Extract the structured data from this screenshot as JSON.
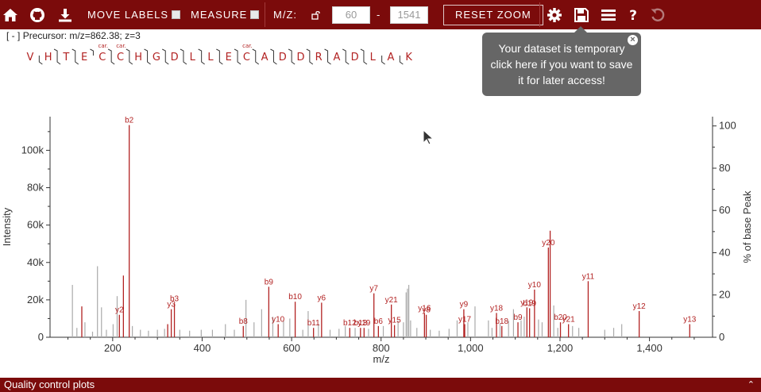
{
  "toolbar": {
    "move_labels": "MOVE LABELS",
    "measure": "MEASURE",
    "mz_label": "M/Z:",
    "mz_min": "60",
    "mz_dash": "-",
    "mz_max": "1541",
    "reset_zoom": "RESET ZOOM",
    "icons": [
      "home-icon",
      "github-icon",
      "download-icon",
      "lock-icon",
      "gear-icon",
      "save-icon",
      "menu-icon",
      "help-icon",
      "undo-icon"
    ],
    "color": "#7b0b0b"
  },
  "precursor": {
    "toggle": "[ - ]",
    "text": "Precursor: m/z=862.38; z=3"
  },
  "sequence": {
    "residues": [
      "V",
      "H",
      "T",
      "E",
      "C",
      "C",
      "H",
      "G",
      "D",
      "L",
      "L",
      "E",
      "C",
      "A",
      "D",
      "D",
      "R",
      "A",
      "D",
      "L",
      "A",
      "K"
    ],
    "mod_positions": [
      4,
      5,
      12
    ],
    "mod_label": "car.",
    "b_breaks": [
      2,
      3,
      4,
      5,
      6,
      7,
      8,
      9,
      10,
      11,
      12,
      13,
      14,
      15,
      16,
      17,
      18,
      19
    ],
    "y_breaks": [
      1,
      2,
      3,
      5,
      6,
      7,
      8,
      9,
      10,
      11,
      12,
      13,
      14,
      15,
      16,
      17,
      18,
      19,
      20,
      21
    ]
  },
  "tooltip": {
    "line1": "Your dataset is temporary",
    "line2": "click here if you want to save",
    "line3": "it for later access!",
    "close": "×"
  },
  "footer": {
    "label": "Quality control plots",
    "caret": "⌃"
  },
  "chart_data": {
    "type": "bar",
    "xlabel": "m/z",
    "ylabel": "Intensity",
    "y2label": "% of base Peak",
    "xlim": [
      60,
      1541
    ],
    "ylim": [
      0,
      118000
    ],
    "y2lim": [
      0,
      104.4
    ],
    "xticks": [
      200,
      400,
      600,
      800,
      1000,
      1200,
      1400
    ],
    "xtick_labels": [
      "200",
      "400",
      "600",
      "800",
      "1,000",
      "1,200",
      "1,400"
    ],
    "yticks": [
      0,
      20000,
      40000,
      60000,
      80000,
      100000
    ],
    "ytick_labels": [
      "0",
      "20k",
      "40k",
      "60k",
      "80k",
      "100k"
    ],
    "y2ticks": [
      0,
      20,
      40,
      60,
      80,
      100
    ],
    "y2tick_labels": [
      "0",
      "20",
      "40",
      "60",
      "80",
      "100"
    ],
    "colors": {
      "annotated": "#b22222",
      "unannotated": "#aaaaaa",
      "axis": "#333333"
    },
    "annotated_peaks": [
      {
        "mz": 237,
        "intensity": 113500,
        "label": "b2"
      },
      {
        "mz": 215,
        "intensity": 12000,
        "label": "y2"
      },
      {
        "mz": 224,
        "intensity": 33000,
        "label": ""
      },
      {
        "mz": 131,
        "intensity": 16500,
        "label": ""
      },
      {
        "mz": 323,
        "intensity": 7000,
        "label": ""
      },
      {
        "mz": 338,
        "intensity": 18000,
        "label": "b3"
      },
      {
        "mz": 331,
        "intensity": 15000,
        "label": "y3"
      },
      {
        "mz": 492,
        "intensity": 6000,
        "label": "b8"
      },
      {
        "mz": 549,
        "intensity": 27000,
        "label": "b9"
      },
      {
        "mz": 570,
        "intensity": 7000,
        "label": "y10"
      },
      {
        "mz": 608,
        "intensity": 19000,
        "label": "b10"
      },
      {
        "mz": 649,
        "intensity": 5000,
        "label": "b11"
      },
      {
        "mz": 667,
        "intensity": 18500,
        "label": "y6"
      },
      {
        "mz": 730,
        "intensity": 5000,
        "label": "b12"
      },
      {
        "mz": 754,
        "intensity": 5000,
        "label": "b13"
      },
      {
        "mz": 762,
        "intensity": 5000,
        "label": "y19"
      },
      {
        "mz": 794,
        "intensity": 6000,
        "label": "b6"
      },
      {
        "mz": 784,
        "intensity": 23500,
        "label": "y7"
      },
      {
        "mz": 823,
        "intensity": 17500,
        "label": "y21"
      },
      {
        "mz": 830,
        "intensity": 6500,
        "label": "y15"
      },
      {
        "mz": 897,
        "intensity": 13000,
        "label": "y16"
      },
      {
        "mz": 901,
        "intensity": 12000,
        "label": "y8"
      },
      {
        "mz": 985,
        "intensity": 15000,
        "label": "y9"
      },
      {
        "mz": 987,
        "intensity": 7000,
        "label": "y17"
      },
      {
        "mz": 1058,
        "intensity": 13000,
        "label": "y18"
      },
      {
        "mz": 1070,
        "intensity": 6000,
        "label": "b18"
      },
      {
        "mz": 1106,
        "intensity": 8000,
        "label": "b9"
      },
      {
        "mz": 1126,
        "intensity": 16000,
        "label": "y19"
      },
      {
        "mz": 1132,
        "intensity": 15500,
        "label": "b19"
      },
      {
        "mz": 1143,
        "intensity": 25500,
        "label": "y10"
      },
      {
        "mz": 1174,
        "intensity": 48000,
        "label": "y20"
      },
      {
        "mz": 1178,
        "intensity": 57000,
        "label": ""
      },
      {
        "mz": 1201,
        "intensity": 8000,
        "label": "b20"
      },
      {
        "mz": 1219,
        "intensity": 7000,
        "label": "y21"
      },
      {
        "mz": 1263,
        "intensity": 30000,
        "label": "y11"
      },
      {
        "mz": 1377,
        "intensity": 14000,
        "label": "y12"
      },
      {
        "mz": 1490,
        "intensity": 7000,
        "label": "y13"
      }
    ],
    "unannotated_peaks": [
      {
        "mz": 110,
        "intensity": 28000
      },
      {
        "mz": 120,
        "intensity": 5000
      },
      {
        "mz": 138,
        "intensity": 8000
      },
      {
        "mz": 155,
        "intensity": 3000
      },
      {
        "mz": 166,
        "intensity": 38000
      },
      {
        "mz": 175,
        "intensity": 16000
      },
      {
        "mz": 186,
        "intensity": 4000
      },
      {
        "mz": 201,
        "intensity": 7000
      },
      {
        "mz": 210,
        "intensity": 22000
      },
      {
        "mz": 244,
        "intensity": 6000
      },
      {
        "mz": 262,
        "intensity": 4000
      },
      {
        "mz": 280,
        "intensity": 3500
      },
      {
        "mz": 300,
        "intensity": 4000
      },
      {
        "mz": 316,
        "intensity": 4500
      },
      {
        "mz": 350,
        "intensity": 4000
      },
      {
        "mz": 372,
        "intensity": 3500
      },
      {
        "mz": 398,
        "intensity": 4000
      },
      {
        "mz": 423,
        "intensity": 4000
      },
      {
        "mz": 452,
        "intensity": 7000
      },
      {
        "mz": 472,
        "intensity": 4000
      },
      {
        "mz": 498,
        "intensity": 20000
      },
      {
        "mz": 516,
        "intensity": 8000
      },
      {
        "mz": 533,
        "intensity": 15000
      },
      {
        "mz": 558,
        "intensity": 11000
      },
      {
        "mz": 582,
        "intensity": 9000
      },
      {
        "mz": 596,
        "intensity": 10000
      },
      {
        "mz": 625,
        "intensity": 4000
      },
      {
        "mz": 637,
        "intensity": 14000
      },
      {
        "mz": 660,
        "intensity": 7000
      },
      {
        "mz": 686,
        "intensity": 4000
      },
      {
        "mz": 706,
        "intensity": 4500
      },
      {
        "mz": 720,
        "intensity": 6000
      },
      {
        "mz": 742,
        "intensity": 5000
      },
      {
        "mz": 772,
        "intensity": 4500
      },
      {
        "mz": 805,
        "intensity": 6000
      },
      {
        "mz": 838,
        "intensity": 9000
      },
      {
        "mz": 850,
        "intensity": 8000
      },
      {
        "mz": 856,
        "intensity": 24000
      },
      {
        "mz": 859,
        "intensity": 26000
      },
      {
        "mz": 862,
        "intensity": 28000
      },
      {
        "mz": 866,
        "intensity": 9000
      },
      {
        "mz": 880,
        "intensity": 5000
      },
      {
        "mz": 910,
        "intensity": 4000
      },
      {
        "mz": 930,
        "intensity": 3500
      },
      {
        "mz": 952,
        "intensity": 4500
      },
      {
        "mz": 970,
        "intensity": 9000
      },
      {
        "mz": 994,
        "intensity": 8000
      },
      {
        "mz": 1010,
        "intensity": 16500
      },
      {
        "mz": 1040,
        "intensity": 9000
      },
      {
        "mz": 1048,
        "intensity": 5000
      },
      {
        "mz": 1066,
        "intensity": 7500
      },
      {
        "mz": 1085,
        "intensity": 9000
      },
      {
        "mz": 1096,
        "intensity": 15000
      },
      {
        "mz": 1113,
        "intensity": 9000
      },
      {
        "mz": 1120,
        "intensity": 11000
      },
      {
        "mz": 1152,
        "intensity": 9500
      },
      {
        "mz": 1160,
        "intensity": 8000
      },
      {
        "mz": 1186,
        "intensity": 17000
      },
      {
        "mz": 1195,
        "intensity": 5000
      },
      {
        "mz": 1228,
        "intensity": 6000
      },
      {
        "mz": 1242,
        "intensity": 5000
      },
      {
        "mz": 1300,
        "intensity": 4000
      },
      {
        "mz": 1320,
        "intensity": 5000
      },
      {
        "mz": 1338,
        "intensity": 7000
      }
    ]
  }
}
